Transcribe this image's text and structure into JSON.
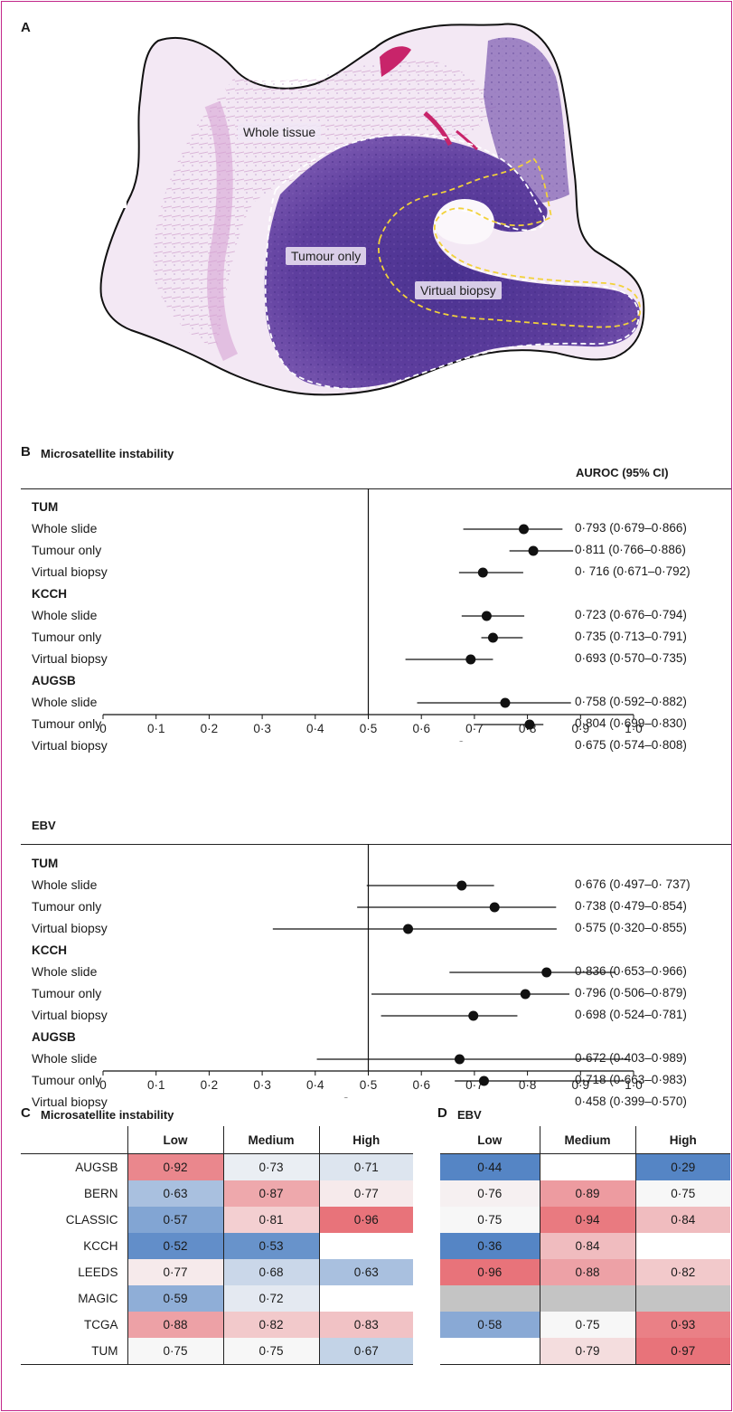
{
  "panel_a": {
    "letter": "A",
    "labels": {
      "whole": "Whole tissue",
      "tumour": "Tumour only",
      "biopsy": "Virtual biopsy"
    }
  },
  "forest_plots": [
    {
      "letter": "B",
      "title": "Microsatellite instability",
      "value_header": "AUROC (95% CI)",
      "groups": [
        {
          "name": "TUM",
          "rows": [
            {
              "label": "Whole slide",
              "auc": 0.793,
              "lo": 0.679,
              "hi": 0.866,
              "text": "0·793 (0·679–0·866)"
            },
            {
              "label": "Tumour only",
              "auc": 0.811,
              "lo": 0.766,
              "hi": 0.886,
              "text": "0·811 (0·766–0·886)"
            },
            {
              "label": "Virtual biopsy",
              "auc": 0.716,
              "lo": 0.671,
              "hi": 0.792,
              "text": "0· 716 (0·671–0·792)"
            }
          ]
        },
        {
          "name": "KCCH",
          "rows": [
            {
              "label": "Whole slide",
              "auc": 0.723,
              "lo": 0.676,
              "hi": 0.794,
              "text": "0·723 (0·676–0·794)"
            },
            {
              "label": "Tumour only",
              "auc": 0.735,
              "lo": 0.713,
              "hi": 0.791,
              "text": "0·735 (0·713–0·791)"
            },
            {
              "label": "Virtual biopsy",
              "auc": 0.693,
              "lo": 0.57,
              "hi": 0.735,
              "text": "0·693 (0·570–0·735)"
            }
          ]
        },
        {
          "name": "AUGSB",
          "rows": [
            {
              "label": "Whole slide",
              "auc": 0.758,
              "lo": 0.592,
              "hi": 0.882,
              "text": "0·758 (0·592–0·882)"
            },
            {
              "label": "Tumour only",
              "auc": 0.804,
              "lo": 0.699,
              "hi": 0.83,
              "text": "0·804 (0·699–0·830)"
            },
            {
              "label": "Virtual biopsy",
              "auc": 0.675,
              "lo": 0.574,
              "hi": 0.808,
              "text": "0·675 (0·574–0·808)"
            }
          ]
        }
      ]
    },
    {
      "letter": "",
      "title": "EBV",
      "value_header": "",
      "groups": [
        {
          "name": "TUM",
          "rows": [
            {
              "label": "Whole slide",
              "auc": 0.676,
              "lo": 0.497,
              "hi": 0.737,
              "text": "0·676 (0·497–0· 737)"
            },
            {
              "label": "Tumour only",
              "auc": 0.738,
              "lo": 0.479,
              "hi": 0.854,
              "text": "0·738 (0·479–0·854)"
            },
            {
              "label": "Virtual biopsy",
              "auc": 0.575,
              "lo": 0.32,
              "hi": 0.855,
              "text": "0·575 (0·320–0·855)"
            }
          ]
        },
        {
          "name": "KCCH",
          "rows": [
            {
              "label": "Whole slide",
              "auc": 0.836,
              "lo": 0.653,
              "hi": 0.966,
              "text": "0·836 (0·653–0·966)"
            },
            {
              "label": "Tumour only",
              "auc": 0.796,
              "lo": 0.506,
              "hi": 0.879,
              "text": "0·796 (0·506–0·879)"
            },
            {
              "label": "Virtual biopsy",
              "auc": 0.698,
              "lo": 0.524,
              "hi": 0.781,
              "text": "0·698 (0·524–0·781)"
            }
          ]
        },
        {
          "name": "AUGSB",
          "rows": [
            {
              "label": "Whole slide",
              "auc": 0.672,
              "lo": 0.403,
              "hi": 0.989,
              "text": "0·672 (0·403–0·989)"
            },
            {
              "label": "Tumour only",
              "auc": 0.718,
              "lo": 0.663,
              "hi": 0.983,
              "text": "0·718 (0·663–0·983)"
            },
            {
              "label": "Virtual biopsy",
              "auc": 0.458,
              "lo": 0.399,
              "hi": 0.57,
              "text": "0·458 (0·399–0·570)"
            }
          ]
        }
      ]
    }
  ],
  "axis_ticks": [
    "0",
    "0·1",
    "0·2",
    "0·3",
    "0·4",
    "0·5",
    "0·6",
    "0·7",
    "0·8",
    "0·9",
    "1·0"
  ],
  "heatmaps": {
    "cohorts": [
      "AUGSB",
      "BERN",
      "CLASSIC",
      "KCCH",
      "LEEDS",
      "MAGIC",
      "TCGA",
      "TUM"
    ],
    "columns": [
      "Low",
      "Medium",
      "High"
    ],
    "msi": {
      "letter": "C",
      "title": "Microsatellite instability",
      "values": [
        [
          0.92,
          0.73,
          0.71
        ],
        [
          0.63,
          0.87,
          0.77
        ],
        [
          0.57,
          0.81,
          0.96
        ],
        [
          0.52,
          0.53,
          null
        ],
        [
          0.77,
          0.68,
          0.63
        ],
        [
          0.59,
          0.72,
          null
        ],
        [
          0.88,
          0.82,
          0.83
        ],
        [
          0.75,
          0.75,
          0.67
        ]
      ],
      "text": [
        [
          "0·92",
          "0·73",
          "0·71"
        ],
        [
          "0·63",
          "0·87",
          "0·77"
        ],
        [
          "0·57",
          "0·81",
          "0·96"
        ],
        [
          "0·52",
          "0·53",
          ""
        ],
        [
          "0·77",
          "0·68",
          "0·63"
        ],
        [
          "0·59",
          "0·72",
          ""
        ],
        [
          "0·88",
          "0·82",
          "0·83"
        ],
        [
          "0·75",
          "0·75",
          "0·67"
        ]
      ]
    },
    "ebv": {
      "letter": "D",
      "title": "EBV",
      "values": [
        [
          0.44,
          null,
          0.29
        ],
        [
          0.76,
          0.89,
          0.75
        ],
        [
          0.75,
          0.94,
          0.84
        ],
        [
          0.36,
          0.84,
          null
        ],
        [
          0.96,
          0.88,
          0.82
        ],
        [
          "na",
          "na",
          "na"
        ],
        [
          0.58,
          0.75,
          0.93
        ],
        [
          null,
          0.79,
          0.97
        ]
      ],
      "text": [
        [
          "0·44",
          "",
          "0·29"
        ],
        [
          "0·76",
          "0·89",
          "0·75"
        ],
        [
          "0·75",
          "0·94",
          "0·84"
        ],
        [
          "0·36",
          "0·84",
          ""
        ],
        [
          "0·96",
          "0·88",
          "0·82"
        ],
        [
          "",
          "",
          ""
        ],
        [
          "0·58",
          "0·75",
          "0·93"
        ],
        [
          "",
          "0·79",
          "0·97"
        ]
      ]
    }
  },
  "colors": {
    "frame": "#c2278a",
    "high": "#e8737a",
    "low": "#5585c5",
    "mid": "#f7f7f7",
    "missing": "#c4c4c4",
    "he_purple": "#5a3a94",
    "he_pink": "#cf94c6"
  }
}
